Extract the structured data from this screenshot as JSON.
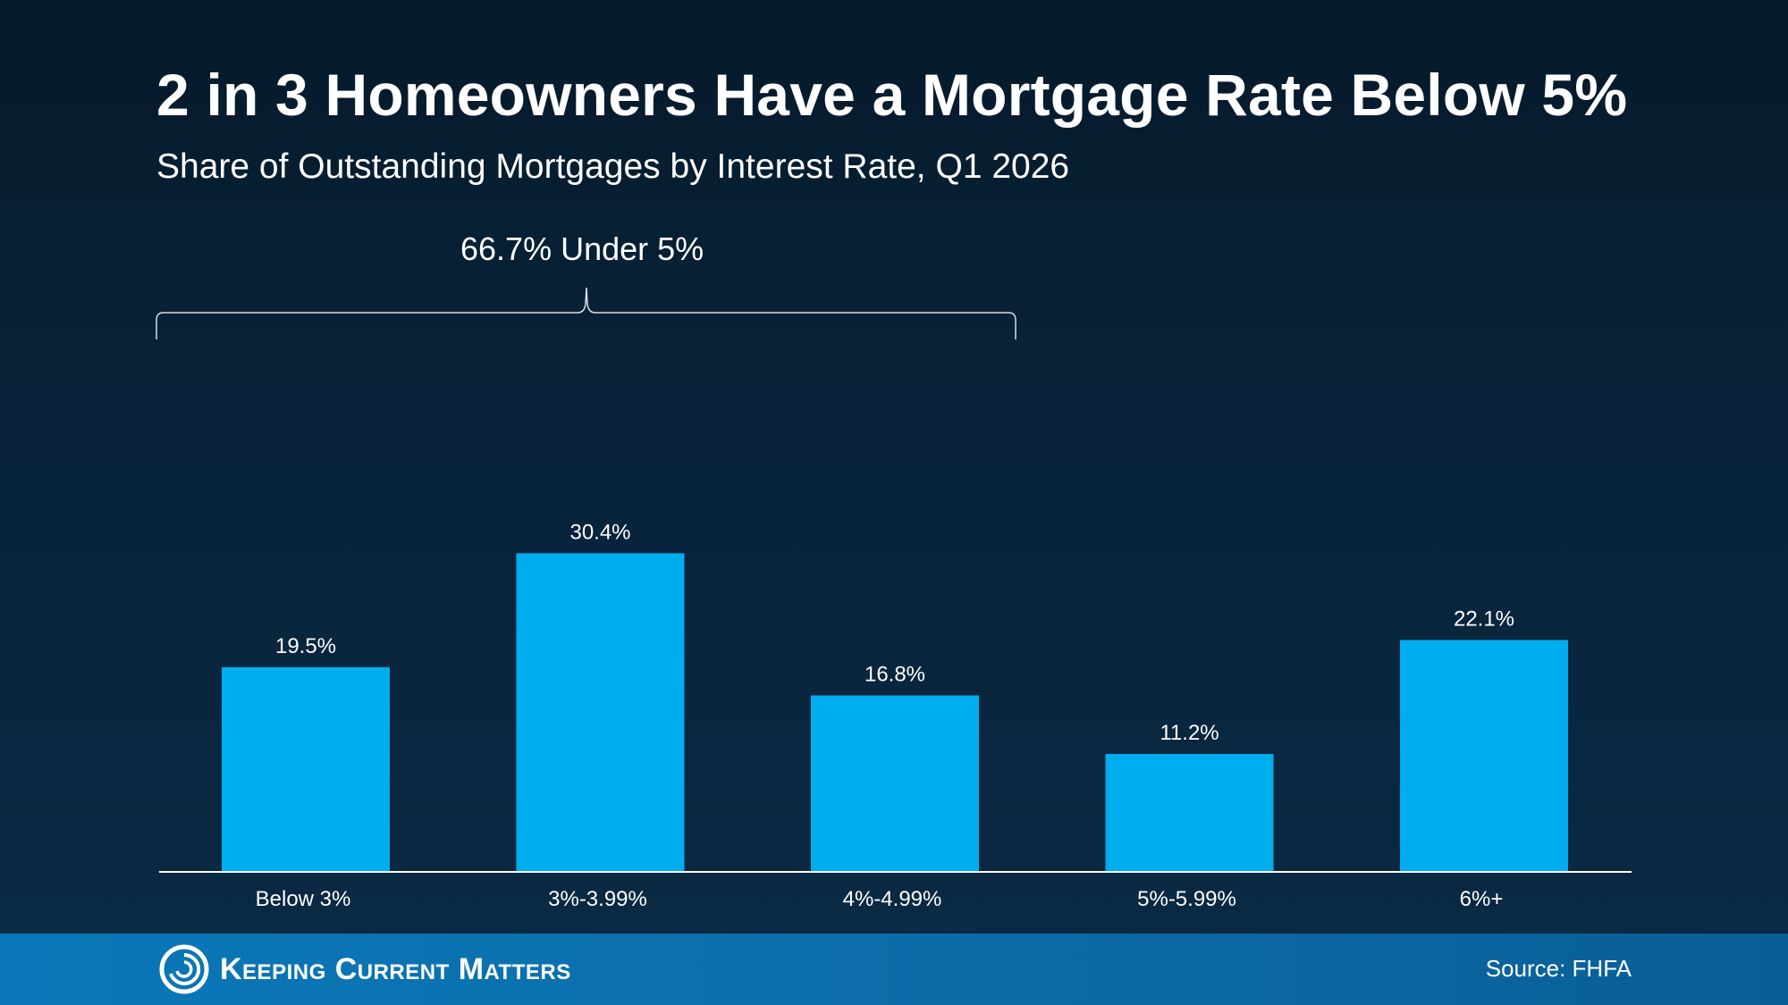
{
  "header": {
    "title": "2 in 3 Homeowners Have a Mortgage Rate Below 5%",
    "subtitle": "Share of Outstanding Mortgages by Interest Rate, Q1 2026"
  },
  "annotation": {
    "label": "66.7% Under 5%"
  },
  "chart_data": {
    "type": "bar",
    "title": "2 in 3 Homeowners Have a Mortgage Rate Below 5%",
    "subtitle": "Share of Outstanding Mortgages by Interest Rate, Q1 2026",
    "categories": [
      "Below 3%",
      "3%-3.99%",
      "4%-4.99%",
      "5%-5.99%",
      "6%+"
    ],
    "values": [
      19.5,
      30.4,
      16.8,
      11.2,
      22.1
    ],
    "data_labels": [
      "19.5%",
      "30.4%",
      "16.8%",
      "11.2%",
      "22.1%"
    ],
    "annotations": [
      {
        "text": "66.7% Under 5%",
        "spans_categories": [
          "Below 3%",
          "3%-3.99%",
          "4%-4.99%"
        ]
      }
    ],
    "xlabel": "",
    "ylabel": "",
    "bar_color": "#00adef",
    "grid": false,
    "y_axis_visible": false
  },
  "footer": {
    "brand": "Keeping Current Matters",
    "source": "Source: FHFA",
    "logo_icon": "swirl-logo-icon"
  },
  "colors": {
    "background_top": "#061a2a",
    "background_bottom": "#0a2a44",
    "bar": "#00adef",
    "footer": "#0a6aa8",
    "text": "#ffffff"
  }
}
